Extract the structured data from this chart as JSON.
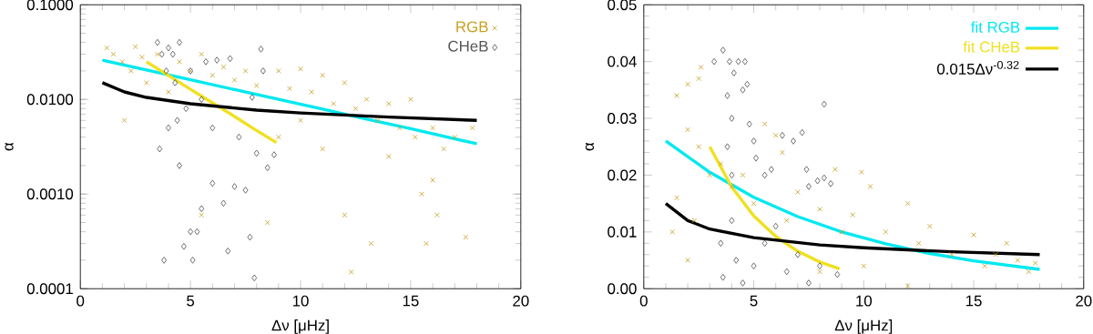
{
  "chart_data": [
    {
      "type": "scatter",
      "xlabel": "Δν [μHz]",
      "ylabel": "α",
      "xlim": [
        0,
        20
      ],
      "ylim": [
        0.0001,
        0.1
      ],
      "log": "y",
      "legend": "top right",
      "xticks": [
        0,
        5,
        10,
        15,
        20
      ],
      "yticks": [
        {
          "value": 0.0001,
          "label": "0.0001"
        },
        {
          "value": 0.001,
          "label": "0.0010"
        },
        {
          "value": 0.01,
          "label": "0.0100"
        },
        {
          "value": 0.1,
          "label": "0.1000"
        }
      ],
      "series": [
        {
          "name": "RGB",
          "marker": "cross",
          "color": "#c8a020",
          "x": [
            1.2,
            1.5,
            1.9,
            2.0,
            2.3,
            2.5,
            2.8,
            3.0,
            3.5,
            4.0,
            4.5,
            5.0,
            5.5,
            5.5,
            6.0,
            6.5,
            7.0,
            7.5,
            8.0,
            8.5,
            9.0,
            9.5,
            10.0,
            10.5,
            11.0,
            11.5,
            12.0,
            12.0,
            12.3,
            12.5,
            13.0,
            13.2,
            13.5,
            14.0,
            14.5,
            15.0,
            15.2,
            15.5,
            15.7,
            16.0,
            16.2,
            16.5,
            17.0,
            17.5,
            17.8,
            11.0,
            9.0,
            14.0,
            16.0,
            10.0
          ],
          "values": [
            0.035,
            0.03,
            0.025,
            0.006,
            0.02,
            0.036,
            0.028,
            0.015,
            0.03,
            0.012,
            0.025,
            0.02,
            0.0006,
            0.03,
            0.018,
            0.022,
            0.016,
            0.02,
            0.014,
            0.0005,
            0.02,
            0.013,
            0.021,
            0.012,
            0.018,
            0.009,
            0.015,
            0.0006,
            0.00015,
            0.008,
            0.01,
            0.0003,
            0.006,
            0.009,
            0.005,
            0.01,
            0.004,
            0.001,
            0.0003,
            0.005,
            0.0006,
            0.003,
            0.004,
            0.00035,
            0.005,
            0.003,
            0.004,
            0.0025,
            0.0014,
            0.006
          ]
        },
        {
          "name": "CHeB",
          "marker": "diamond",
          "color": "#555555",
          "x": [
            3.5,
            3.7,
            3.8,
            3.9,
            4.0,
            4.0,
            4.2,
            4.3,
            4.5,
            4.5,
            4.7,
            4.8,
            5.0,
            5.0,
            5.1,
            5.3,
            5.5,
            5.7,
            6.0,
            6.2,
            6.5,
            6.7,
            6.8,
            7.0,
            7.2,
            7.5,
            7.7,
            7.8,
            8.0,
            8.2,
            8.3,
            8.5,
            8.8,
            7.9,
            6.0,
            5.5,
            4.4,
            3.6
          ],
          "values": [
            0.04,
            0.03,
            0.0002,
            0.02,
            0.035,
            0.005,
            0.03,
            0.015,
            0.04,
            0.002,
            0.00028,
            0.008,
            0.0004,
            0.02,
            0.0002,
            0.0004,
            0.0007,
            0.025,
            0.0013,
            0.026,
            0.0008,
            0.00025,
            0.027,
            0.0012,
            0.004,
            0.0011,
            0.00035,
            0.0105,
            0.0027,
            0.034,
            0.02,
            0.0019,
            0.0026,
            0.00013,
            0.005,
            0.01,
            0.006,
            0.003
          ]
        },
        {
          "type": "line",
          "marker": "none",
          "color": "#00e8f0",
          "x": [
            1,
            3,
            5,
            7,
            9,
            11,
            13,
            15,
            18
          ],
          "values": [
            0.026,
            0.0205,
            0.0161,
            0.0127,
            0.01,
            0.0079,
            0.0062,
            0.0049,
            0.0034
          ]
        },
        {
          "type": "line",
          "marker": "none",
          "color": "#f0e020",
          "x": [
            3,
            4,
            5,
            6,
            7,
            8,
            8.9
          ],
          "values": [
            0.025,
            0.0179,
            0.0128,
            0.0092,
            0.0066,
            0.0047,
            0.0035
          ]
        },
        {
          "type": "line",
          "marker": "none",
          "color": "#000000",
          "x": [
            1,
            2,
            3,
            5,
            8,
            10,
            14,
            18
          ],
          "values": [
            0.015,
            0.012,
            0.0105,
            0.009,
            0.0077,
            0.0072,
            0.0065,
            0.006
          ]
        }
      ]
    },
    {
      "type": "scatter",
      "xlabel": "Δν [μHz]",
      "ylabel": "α",
      "xlim": [
        0,
        20
      ],
      "ylim": [
        0,
        0.05
      ],
      "legend": "top right",
      "xticks": [
        0,
        5,
        10,
        15,
        20
      ],
      "yticks": [
        {
          "value": 0,
          "label": "0.00"
        },
        {
          "value": 0.01,
          "label": "0.01"
        },
        {
          "value": 0.02,
          "label": "0.02"
        },
        {
          "value": 0.03,
          "label": "0.03"
        },
        {
          "value": 0.04,
          "label": "0.04"
        },
        {
          "value": 0.05,
          "label": "0.05"
        }
      ],
      "series": [
        {
          "marker": "cross",
          "color": "#c8a020",
          "x": [
            1.5,
            1.5,
            2.0,
            2.0,
            2.3,
            2.5,
            2.6,
            2.5,
            3.0,
            3.5,
            4.0,
            4.5,
            5.0,
            5.5,
            6.0,
            6.3,
            6.5,
            7.0,
            8.0,
            8.7,
            9.0,
            9.5,
            9.9,
            10.3,
            11.0,
            12.0,
            12.5,
            13.0,
            14.0,
            15.0,
            15.5,
            16.0,
            16.5,
            17.0,
            17.5,
            17.8,
            12.0,
            10.0,
            8.0,
            2.0,
            1.3
          ],
          "values": [
            0.034,
            0.016,
            0.036,
            0.028,
            0.012,
            0.037,
            0.039,
            0.025,
            0.02,
            0.022,
            0.018,
            0.02,
            0.015,
            0.029,
            0.027,
            0.024,
            0.012,
            0.017,
            0.014,
            0.021,
            0.01,
            0.013,
            0.0205,
            0.018,
            0.01,
            0.015,
            0.008,
            0.011,
            0.006,
            0.0095,
            0.004,
            0.006,
            0.008,
            0.005,
            0.003,
            0.0045,
            0.0005,
            0.004,
            0.003,
            0.005,
            0.01
          ]
        },
        {
          "marker": "diamond",
          "color": "#555555",
          "x": [
            3.2,
            3.6,
            3.8,
            3.9,
            4.0,
            4.1,
            4.3,
            4.5,
            4.6,
            4.7,
            4.8,
            5.0,
            5.1,
            5.5,
            5.8,
            6.3,
            6.8,
            7.2,
            7.4,
            7.5,
            7.9,
            8.2,
            8.2,
            8.5,
            3.5,
            3.6,
            4.0,
            4.2,
            4.5,
            5.0,
            5.5,
            6.0,
            6.5,
            7.0,
            7.5,
            8.0,
            8.8,
            4.0,
            3.8
          ],
          "values": [
            0.04,
            0.042,
            0.034,
            0.04,
            0.03,
            0.038,
            0.04,
            0.035,
            0.04,
            0.036,
            0.029,
            0.026,
            0.023,
            0.02,
            0.021,
            0.027,
            0.026,
            0.0275,
            0.021,
            0.018,
            0.019,
            0.0325,
            0.0195,
            0.0185,
            0.008,
            0.002,
            0.012,
            0.005,
            0.001,
            0.004,
            0.008,
            0.011,
            0.003,
            0.006,
            0.001,
            0.004,
            0.0025,
            0.02,
            0.025
          ]
        },
        {
          "name": "fit RGB",
          "type": "line",
          "marker": "none",
          "color": "#00e8f0",
          "x": [
            1,
            3,
            5,
            7,
            9,
            11,
            13,
            15,
            18
          ],
          "values": [
            0.026,
            0.0205,
            0.0161,
            0.0127,
            0.01,
            0.0079,
            0.0062,
            0.0049,
            0.0034
          ]
        },
        {
          "name": "fit CHeB",
          "type": "line",
          "marker": "none",
          "color": "#f0e020",
          "x": [
            3,
            4,
            5,
            6,
            7,
            8,
            8.9
          ],
          "values": [
            0.025,
            0.0179,
            0.0128,
            0.0092,
            0.0066,
            0.0047,
            0.0035
          ]
        },
        {
          "name": "0.015Δν$^{-0.32}$",
          "type": "line",
          "marker": "none",
          "color": "#000000",
          "x": [
            1,
            2,
            3,
            5,
            8,
            10,
            14,
            18
          ],
          "values": [
            0.015,
            0.012,
            0.0105,
            0.009,
            0.0077,
            0.0072,
            0.0065,
            0.006
          ]
        }
      ]
    }
  ]
}
